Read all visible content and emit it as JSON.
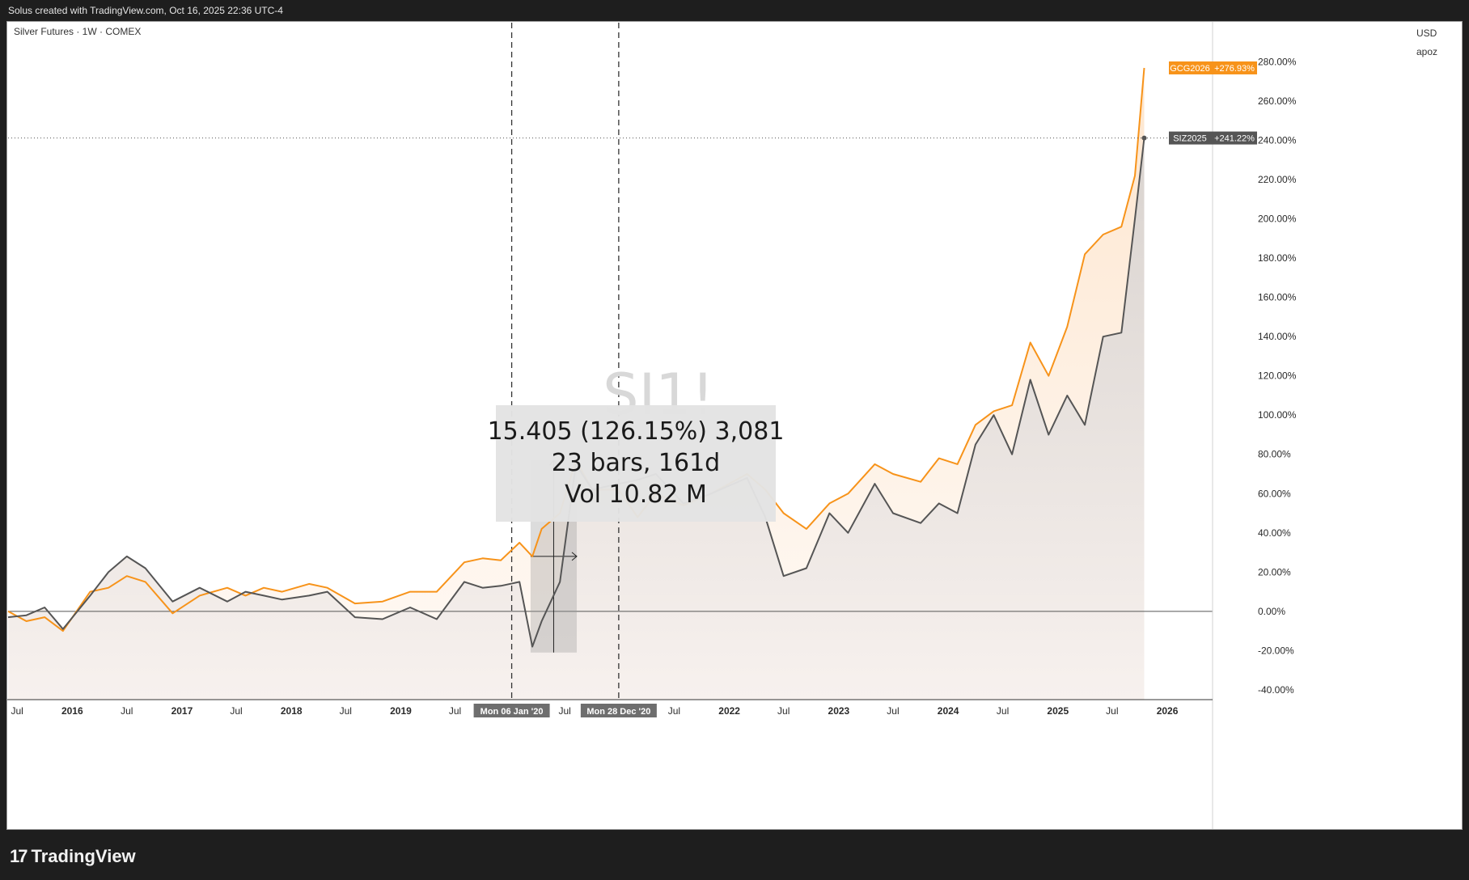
{
  "header": {
    "attribution": "Solus created with TradingView.com, Oct 16, 2025 22:36 UTC-4"
  },
  "footer": {
    "brand": "TradingView",
    "logo_mark": "17"
  },
  "legend": {
    "title": "Silver Futures · 1W · COMEX"
  },
  "watermark": "SI1!",
  "price_scale": {
    "currency": "USD",
    "unit": "apoz"
  },
  "measure_box": {
    "line1": "15.405 (126.15%) 3,081",
    "line2": "23 bars, 161d",
    "line3": "Vol 10.82 M"
  },
  "markers": [
    {
      "label": "Mon 06 Jan '20",
      "date": "2020-01-06"
    },
    {
      "label": "Mon 28 Dec '20",
      "date": "2020-12-28"
    }
  ],
  "colors": {
    "gold": "#f7931a",
    "silver": "#555555",
    "gold_tag": "#f7931a",
    "silver_tag": "#555555",
    "marker_label": "#6e6e6e"
  },
  "chart_data": {
    "type": "line",
    "title": "Silver Futures · 1W · COMEX",
    "ylabel": "%",
    "ylim": [
      -45,
      300
    ],
    "xlim": [
      "2015-06-01",
      "2026-06-01"
    ],
    "y_ticks": [
      "280.00%",
      "260.00%",
      "240.00%",
      "220.00%",
      "200.00%",
      "180.00%",
      "160.00%",
      "140.00%",
      "120.00%",
      "100.00%",
      "80.00%",
      "60.00%",
      "40.00%",
      "20.00%",
      "0.00%",
      "-20.00%",
      "-40.00%"
    ],
    "x_ticks": [
      {
        "label": "Jul",
        "date": "2015-07-01",
        "bold": false
      },
      {
        "label": "2016",
        "date": "2016-01-01",
        "bold": true
      },
      {
        "label": "Jul",
        "date": "2016-07-01",
        "bold": false
      },
      {
        "label": "2017",
        "date": "2017-01-01",
        "bold": true
      },
      {
        "label": "Jul",
        "date": "2017-07-01",
        "bold": false
      },
      {
        "label": "2018",
        "date": "2018-01-01",
        "bold": true
      },
      {
        "label": "Jul",
        "date": "2018-07-01",
        "bold": false
      },
      {
        "label": "2019",
        "date": "2019-01-01",
        "bold": true
      },
      {
        "label": "Jul",
        "date": "2019-07-01",
        "bold": false
      },
      {
        "label": "Jul",
        "date": "2020-07-01",
        "bold": false
      },
      {
        "label": "Jul",
        "date": "2021-07-01",
        "bold": false
      },
      {
        "label": "2022",
        "date": "2022-01-01",
        "bold": true
      },
      {
        "label": "Jul",
        "date": "2022-07-01",
        "bold": false
      },
      {
        "label": "2023",
        "date": "2023-01-01",
        "bold": true
      },
      {
        "label": "Jul",
        "date": "2023-07-01",
        "bold": false
      },
      {
        "label": "2024",
        "date": "2024-01-01",
        "bold": true
      },
      {
        "label": "Jul",
        "date": "2024-07-01",
        "bold": false
      },
      {
        "label": "2025",
        "date": "2025-01-01",
        "bold": true
      },
      {
        "label": "Jul",
        "date": "2025-07-01",
        "bold": false
      },
      {
        "label": "2026",
        "date": "2026-01-01",
        "bold": true
      }
    ],
    "series": [
      {
        "name": "GCG2026",
        "last_label": "+276.93%",
        "points": [
          [
            "2015-06-01",
            0
          ],
          [
            "2015-08-01",
            -5
          ],
          [
            "2015-10-01",
            -3
          ],
          [
            "2015-12-01",
            -10
          ],
          [
            "2016-03-01",
            10
          ],
          [
            "2016-05-01",
            12
          ],
          [
            "2016-07-01",
            18
          ],
          [
            "2016-09-01",
            15
          ],
          [
            "2016-12-01",
            -1
          ],
          [
            "2017-03-01",
            8
          ],
          [
            "2017-06-01",
            12
          ],
          [
            "2017-08-01",
            8
          ],
          [
            "2017-10-01",
            12
          ],
          [
            "2017-12-01",
            10
          ],
          [
            "2018-03-01",
            14
          ],
          [
            "2018-05-01",
            12
          ],
          [
            "2018-08-01",
            4
          ],
          [
            "2018-11-01",
            5
          ],
          [
            "2019-02-01",
            10
          ],
          [
            "2019-05-01",
            10
          ],
          [
            "2019-08-01",
            25
          ],
          [
            "2019-10-01",
            27
          ],
          [
            "2019-12-01",
            26
          ],
          [
            "2020-02-01",
            35
          ],
          [
            "2020-03-15",
            28
          ],
          [
            "2020-04-15",
            42
          ],
          [
            "2020-06-15",
            50
          ],
          [
            "2020-08-07",
            77
          ],
          [
            "2020-10-01",
            62
          ],
          [
            "2020-12-28",
            62
          ],
          [
            "2021-03-01",
            48
          ],
          [
            "2021-05-01",
            60
          ],
          [
            "2021-08-01",
            54
          ],
          [
            "2021-11-01",
            60
          ],
          [
            "2022-03-01",
            70
          ],
          [
            "2022-05-01",
            62
          ],
          [
            "2022-07-01",
            50
          ],
          [
            "2022-09-15",
            42
          ],
          [
            "2022-12-01",
            55
          ],
          [
            "2023-02-01",
            60
          ],
          [
            "2023-05-01",
            75
          ],
          [
            "2023-07-01",
            70
          ],
          [
            "2023-10-01",
            66
          ],
          [
            "2023-12-01",
            78
          ],
          [
            "2024-02-01",
            75
          ],
          [
            "2024-04-01",
            95
          ],
          [
            "2024-06-01",
            102
          ],
          [
            "2024-08-01",
            105
          ],
          [
            "2024-10-01",
            137
          ],
          [
            "2024-12-01",
            120
          ],
          [
            "2025-02-01",
            145
          ],
          [
            "2025-04-01",
            182
          ],
          [
            "2025-06-01",
            192
          ],
          [
            "2025-08-01",
            196
          ],
          [
            "2025-09-15",
            222
          ],
          [
            "2025-10-16",
            276.93
          ]
        ]
      },
      {
        "name": "SIZ2025",
        "last_label": "+241.22%",
        "points": [
          [
            "2015-06-01",
            -3
          ],
          [
            "2015-08-01",
            -2
          ],
          [
            "2015-10-01",
            2
          ],
          [
            "2015-12-01",
            -9
          ],
          [
            "2016-03-01",
            8
          ],
          [
            "2016-05-01",
            20
          ],
          [
            "2016-07-01",
            28
          ],
          [
            "2016-09-01",
            22
          ],
          [
            "2016-12-01",
            5
          ],
          [
            "2017-03-01",
            12
          ],
          [
            "2017-06-01",
            5
          ],
          [
            "2017-08-01",
            10
          ],
          [
            "2017-10-01",
            8
          ],
          [
            "2017-12-01",
            6
          ],
          [
            "2018-03-01",
            8
          ],
          [
            "2018-05-01",
            10
          ],
          [
            "2018-08-01",
            -3
          ],
          [
            "2018-11-01",
            -4
          ],
          [
            "2019-02-01",
            2
          ],
          [
            "2019-05-01",
            -4
          ],
          [
            "2019-08-01",
            15
          ],
          [
            "2019-10-01",
            12
          ],
          [
            "2019-12-01",
            13
          ],
          [
            "2020-02-01",
            15
          ],
          [
            "2020-03-15",
            -18
          ],
          [
            "2020-04-15",
            -5
          ],
          [
            "2020-06-15",
            15
          ],
          [
            "2020-08-07",
            75
          ],
          [
            "2020-10-01",
            62
          ],
          [
            "2020-12-28",
            65
          ],
          [
            "2021-03-01",
            67
          ],
          [
            "2021-05-01",
            70
          ],
          [
            "2021-08-01",
            55
          ],
          [
            "2021-11-01",
            60
          ],
          [
            "2022-03-01",
            68
          ],
          [
            "2022-05-01",
            48
          ],
          [
            "2022-07-01",
            18
          ],
          [
            "2022-09-15",
            22
          ],
          [
            "2022-12-01",
            50
          ],
          [
            "2023-02-01",
            40
          ],
          [
            "2023-05-01",
            65
          ],
          [
            "2023-07-01",
            50
          ],
          [
            "2023-10-01",
            45
          ],
          [
            "2023-12-01",
            55
          ],
          [
            "2024-02-01",
            50
          ],
          [
            "2024-04-01",
            85
          ],
          [
            "2024-06-01",
            100
          ],
          [
            "2024-08-01",
            80
          ],
          [
            "2024-10-01",
            118
          ],
          [
            "2024-12-01",
            90
          ],
          [
            "2025-02-01",
            110
          ],
          [
            "2025-04-01",
            95
          ],
          [
            "2025-06-01",
            140
          ],
          [
            "2025-08-01",
            142
          ],
          [
            "2025-09-15",
            200
          ],
          [
            "2025-10-16",
            241.22
          ]
        ]
      }
    ]
  }
}
